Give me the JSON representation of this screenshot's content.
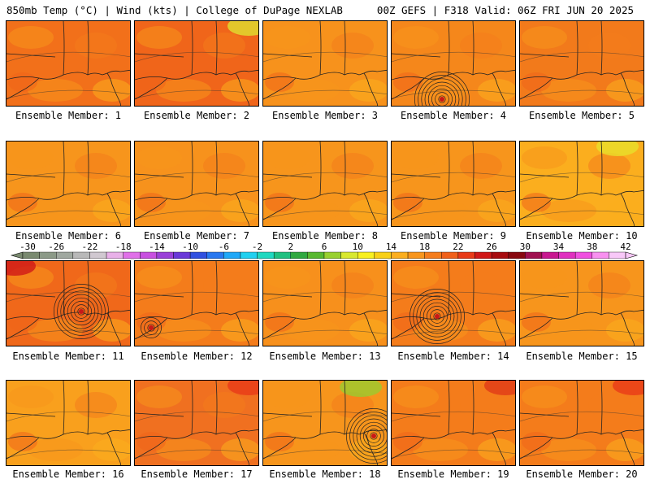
{
  "header": {
    "left": "850mb Temp (°C) | Wind (kts) | College of DuPage NEXLAB",
    "right": "00Z GEFS | F318 Valid: 06Z FRI JUN 20 2025"
  },
  "panel_label_prefix": "Ensemble Member: ",
  "members": [
    {
      "label": "Ensemble Member: 1",
      "base": "#f2701a",
      "storm": null
    },
    {
      "label": "Ensemble Member: 2",
      "base": "#f0651a",
      "storm": null,
      "accent": "#e0e030"
    },
    {
      "label": "Ensemble Member: 3",
      "base": "#f7921c",
      "storm": null
    },
    {
      "label": "Ensemble Member: 4",
      "base": "#f5871b",
      "storm": "strong"
    },
    {
      "label": "Ensemble Member: 5",
      "base": "#f27a1b",
      "storm": null
    },
    {
      "label": "Ensemble Member: 6",
      "base": "#f7951c",
      "storm": null
    },
    {
      "label": "Ensemble Member: 7",
      "base": "#f7921c",
      "storm": null
    },
    {
      "label": "Ensemble Member: 8",
      "base": "#f7951c",
      "storm": null
    },
    {
      "label": "Ensemble Member: 9",
      "base": "#f7951c",
      "storm": null
    },
    {
      "label": "Ensemble Member: 10",
      "base": "#fbae1e",
      "storm": null,
      "accent": "#e8e02a"
    },
    {
      "label": "Ensemble Member: 11",
      "base": "#f0681a",
      "storm": "strong",
      "accent": "#d01818"
    },
    {
      "label": "Ensemble Member: 12",
      "base": "#f47c1b",
      "storm": "weak"
    },
    {
      "label": "Ensemble Member: 13",
      "base": "#f7901c",
      "storm": null
    },
    {
      "label": "Ensemble Member: 14",
      "base": "#f47c1b",
      "storm": "strong"
    },
    {
      "label": "Ensemble Member: 15",
      "base": "#f7951c",
      "storm": null
    },
    {
      "label": "Ensemble Member: 16",
      "base": "#f9a01d",
      "storm": null
    },
    {
      "label": "Ensemble Member: 17",
      "base": "#f07020",
      "storm": null,
      "accent": "#e83a18"
    },
    {
      "label": "Ensemble Member: 18",
      "base": "#f7951c",
      "storm": "strong",
      "accent": "#9acc30"
    },
    {
      "label": "Ensemble Member: 19",
      "base": "#f47c1b",
      "storm": null,
      "accent": "#e03a18"
    },
    {
      "label": "Ensemble Member: 20",
      "base": "#f47c1b",
      "storm": null,
      "accent": "#e83a18"
    }
  ],
  "colorbar": {
    "ticks": [
      "-30",
      "-26",
      "-22",
      "-18",
      "-14",
      "-10",
      "-6",
      "-2",
      "2",
      "6",
      "10",
      "14",
      "18",
      "22",
      "26",
      "30",
      "34",
      "38",
      "42"
    ],
    "colors": [
      "#7a8a70",
      "#8c9a88",
      "#a0a8a0",
      "#b8b8b8",
      "#d0c8d0",
      "#e8b0e8",
      "#e070e8",
      "#c850e0",
      "#9a40d8",
      "#6a38d8",
      "#3050e0",
      "#2878f0",
      "#20a8f8",
      "#20d0f0",
      "#20d8c0",
      "#20c080",
      "#30a840",
      "#58b830",
      "#98d030",
      "#d8e830",
      "#f8f020",
      "#f8d018",
      "#fbae1e",
      "#f7951c",
      "#f47c1b",
      "#f0601a",
      "#e83a18",
      "#d01818",
      "#a80c10",
      "#880810",
      "#a01050",
      "#c81890",
      "#e030c0",
      "#f050e0",
      "#f890f0",
      "#f8c8f8"
    ]
  }
}
